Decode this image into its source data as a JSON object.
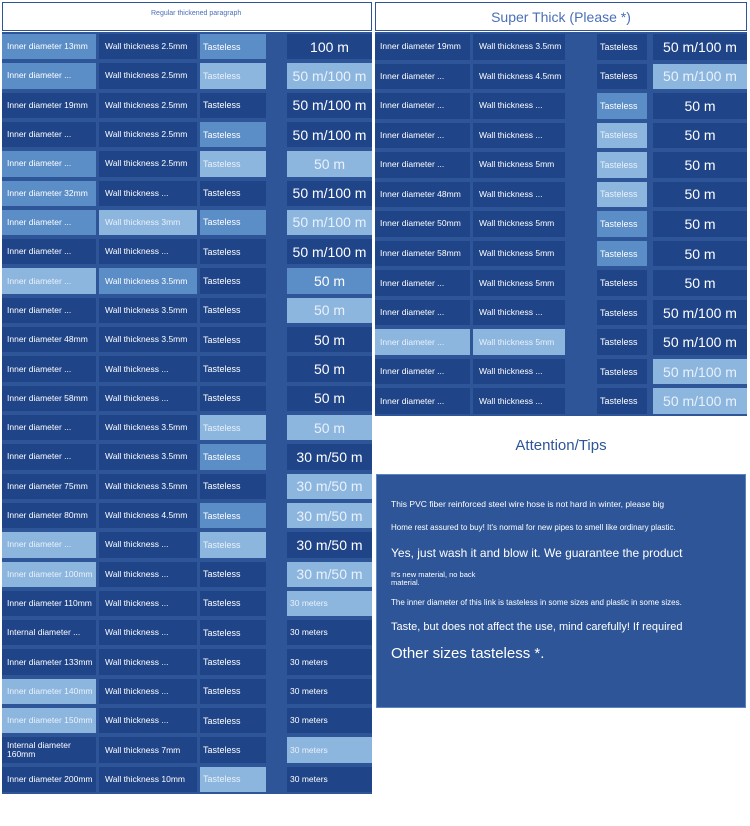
{
  "left_header": "Regular thickened paragraph",
  "right_header": "Super Thick (Please *)",
  "left_rows": [
    {
      "d": "Inner diameter 13mm",
      "w": "Wall thickness 2.5mm",
      "t": "Tasteless",
      "l": "100 m"
    },
    {
      "d": "Inner diameter ...",
      "w": "Wall thickness 2.5mm",
      "t": "Tasteless",
      "l": "50 m/100 m"
    },
    {
      "d": "Inner diameter 19mm",
      "w": "Wall thickness 2.5mm",
      "t": "Tasteless",
      "l": "50 m/100 m"
    },
    {
      "d": "Inner diameter ...",
      "w": "Wall thickness 2.5mm",
      "t": "Tasteless",
      "l": "50 m/100 m"
    },
    {
      "d": "Inner diameter ...",
      "w": "Wall thickness 2.5mm",
      "t": "Tasteless",
      "l": "50 m"
    },
    {
      "d": "Inner diameter 32mm",
      "w": "Wall thickness ...",
      "t": "Tasteless",
      "l": "50 m/100 m"
    },
    {
      "d": "Inner diameter ...",
      "w": "Wall thickness 3mm",
      "t": "Tasteless",
      "l": "50 m/100 m"
    },
    {
      "d": "Inner diameter ...",
      "w": "Wall thickness ...",
      "t": "Tasteless",
      "l": "50 m/100 m"
    },
    {
      "d": "Inner diameter ...",
      "w": "Wall thickness 3.5mm",
      "t": "Tasteless",
      "l": "50 m"
    },
    {
      "d": "Inner diameter ...",
      "w": "Wall thickness 3.5mm",
      "t": "Tasteless",
      "l": "50 m"
    },
    {
      "d": "Inner diameter 48mm",
      "w": "Wall thickness 3.5mm",
      "t": "Tasteless",
      "l": "50 m"
    },
    {
      "d": "Inner diameter ...",
      "w": "Wall thickness ...",
      "t": "Tasteless",
      "l": "50 m"
    },
    {
      "d": "Inner diameter 58mm",
      "w": "Wall thickness ...",
      "t": "Tasteless",
      "l": "50 m"
    },
    {
      "d": "Inner diameter ...",
      "w": "Wall thickness 3.5mm",
      "t": "Tasteless",
      "l": "50 m"
    },
    {
      "d": "Inner diameter ...",
      "w": "Wall thickness 3.5mm",
      "t": "Tasteless",
      "l": "30 m/50 m"
    },
    {
      "d": "Inner diameter 75mm",
      "w": "Wall thickness 3.5mm",
      "t": "Tasteless",
      "l": "30 m/50 m"
    },
    {
      "d": "Inner diameter 80mm",
      "w": "Wall thickness 4.5mm",
      "t": "Tasteless",
      "l": "30 m/50 m"
    },
    {
      "d": "Inner diameter ...",
      "w": "Wall thickness ...",
      "t": "Tasteless",
      "l": "30 m/50 m"
    },
    {
      "d": "Inner diameter 100mm",
      "w": "Wall thickness ...",
      "t": "Tasteless",
      "l": "30 m/50 m"
    },
    {
      "d": "Inner diameter 110mm",
      "w": "Wall thickness ...",
      "t": "Tasteless",
      "l": "30 meters"
    },
    {
      "d": "Internal diameter ...",
      "w": "Wall thickness ...",
      "t": "Tasteless",
      "l": "30 meters"
    },
    {
      "d": "Inner diameter 133mm",
      "w": "Wall thickness ...",
      "t": "Tasteless",
      "l": "30 meters"
    },
    {
      "d": "Inner diameter 140mm",
      "w": "Wall thickness ...",
      "t": "Tasteless",
      "l": "30 meters"
    },
    {
      "d": "Inner diameter 150mm",
      "w": "Wall thickness ...",
      "t": "Tasteless",
      "l": "30 meters"
    },
    {
      "d": "Internal diameter 160mm",
      "w": "Wall thickness 7mm",
      "t": "Tasteless",
      "l": "30 meters"
    },
    {
      "d": "Inner diameter 200mm",
      "w": "Wall thickness 10mm",
      "t": "Tasteless",
      "l": "30 meters"
    }
  ],
  "right_rows": [
    {
      "d": "Inner diameter 19mm",
      "w": "Wall thickness 3.5mm",
      "t": "Tasteless",
      "l": "50 m/100 m"
    },
    {
      "d": "Inner diameter ...",
      "w": "Wall thickness 4.5mm",
      "t": "Tasteless",
      "l": "50 m/100 m"
    },
    {
      "d": "Inner diameter ...",
      "w": "Wall thickness ...",
      "t": "Tasteless",
      "l": "50 m"
    },
    {
      "d": "Inner diameter ...",
      "w": "Wall thickness ...",
      "t": "Tasteless",
      "l": "50 m"
    },
    {
      "d": "Inner diameter ...",
      "w": "Wall thickness 5mm",
      "t": "Tasteless",
      "l": "50 m"
    },
    {
      "d": "Inner diameter 48mm",
      "w": "Wall thickness ...",
      "t": "Tasteless",
      "l": "50 m"
    },
    {
      "d": "Inner diameter 50mm",
      "w": "Wall thickness 5mm",
      "t": "Tasteless",
      "l": "50 m"
    },
    {
      "d": "Inner diameter 58mm",
      "w": "Wall thickness 5mm",
      "t": "Tasteless",
      "l": "50 m"
    },
    {
      "d": "Inner diameter ...",
      "w": "Wall thickness 5mm",
      "t": "Tasteless",
      "l": "50 m"
    },
    {
      "d": "Inner diameter ...",
      "w": "Wall thickness ...",
      "t": "Tasteless",
      "l": "50 m/100 m"
    },
    {
      "d": "Inner diameter ...",
      "w": "Wall thickness 5mm",
      "t": "Tasteless",
      "l": "50 m/100 m"
    },
    {
      "d": "Inner diameter ...",
      "w": "Wall thickness ...",
      "t": "Tasteless",
      "l": "50 m/100 m"
    },
    {
      "d": "Inner diameter ...",
      "w": "Wall thickness ...",
      "t": "Tasteless",
      "l": "50 m/100 m"
    }
  ],
  "tips_title": "Attention/Tips",
  "tips": [
    "This PVC fiber reinforced steel wire hose is not hard in winter, please big",
    "Home rest assured to buy! It's normal for new pipes to smell like ordinary plastic.",
    "Yes, just wash it and blow it. We guarantee the product",
    "It's new material, no back material.",
    "The inner diameter of this link is tasteless in some sizes and plastic in some sizes.",
    "Taste, but does not affect the use, mind carefully! If required",
    "Other sizes tasteless *."
  ],
  "colors": {
    "panel": "#2d5597",
    "cell_dark": "#1f4488",
    "cell_mid": "#4a78b6",
    "cell_light": "#8db6df",
    "header_text": "#4a6fb8"
  }
}
